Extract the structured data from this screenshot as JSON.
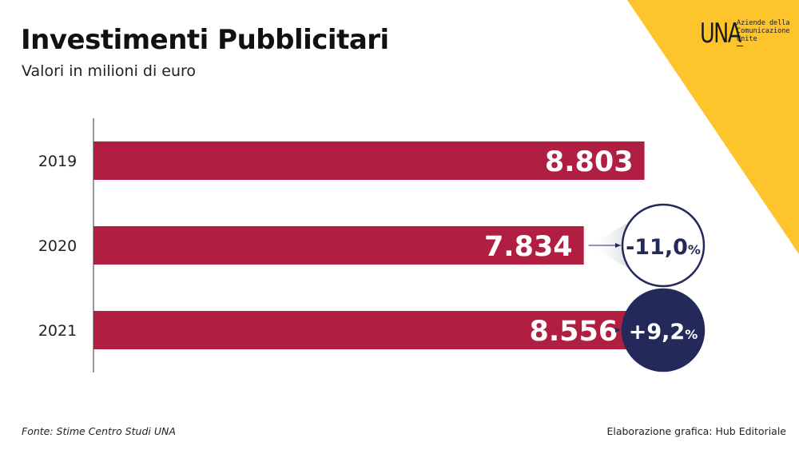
{
  "header": {
    "title": "Investimenti Pubblicitari",
    "subtitle": "Valori in milioni di euro"
  },
  "logo": {
    "mark": "UNA",
    "text": "Aziende della Comunicazione Unite"
  },
  "footer": {
    "source": "Fonte: Stime Centro Studi UNA",
    "credit": "Elaborazione grafica: Hub Editoriale"
  },
  "colors": {
    "bar": "#b01e41",
    "accent_yellow": "#fdc42c",
    "navy": "#232a5a"
  },
  "chart_data": {
    "type": "bar",
    "orientation": "horizontal",
    "categories": [
      "2019",
      "2020",
      "2021"
    ],
    "values": [
      8803,
      7834,
      8556
    ],
    "value_labels": [
      "8.803",
      "7.834",
      "8.556"
    ],
    "annotations": [
      {
        "category": "2020",
        "label": "-11,0",
        "unit": "%",
        "style": "outline"
      },
      {
        "category": "2021",
        "label": "+9,2",
        "unit": "%",
        "style": "filled"
      }
    ],
    "title": "Investimenti Pubblicitari",
    "subtitle": "Valori in milioni di euro",
    "xlim": [
      0,
      9000
    ],
    "grid": false
  }
}
